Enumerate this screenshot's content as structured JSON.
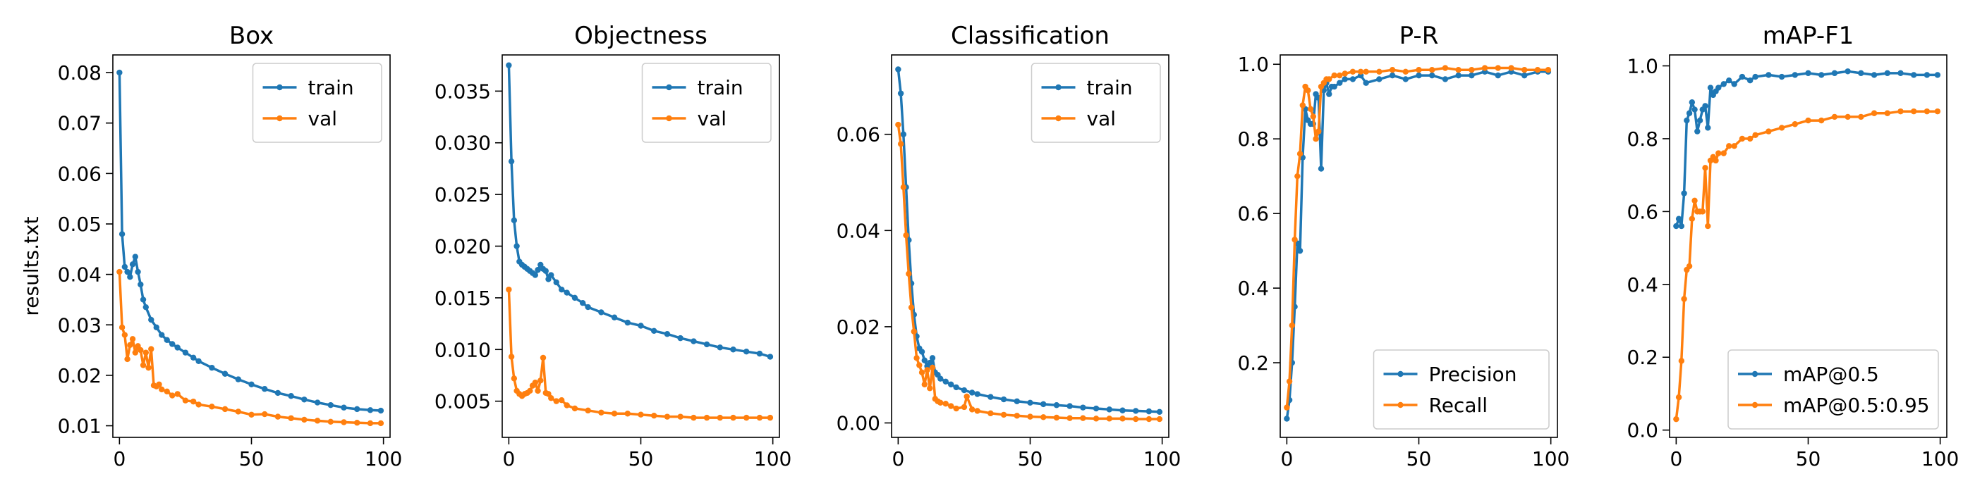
{
  "figure_ylabel": "results.txt",
  "colors": {
    "series1": "#1f77b4",
    "series2": "#ff7f0e"
  },
  "chart_data": [
    {
      "type": "line",
      "title": "Box",
      "xlabel": "",
      "ylabel": "results.txt",
      "xlim": [
        -2.5,
        102.5
      ],
      "ylim": [
        0.0077,
        0.0835
      ],
      "x_ticks": [
        0,
        50,
        100
      ],
      "y_ticks": [
        0.01,
        0.02,
        0.03,
        0.04,
        0.05,
        0.06,
        0.07,
        0.08
      ],
      "y_tick_labels": [
        "0.01",
        "0.02",
        "0.03",
        "0.04",
        "0.05",
        "0.06",
        "0.07",
        "0.08"
      ],
      "legend_loc": "top-right",
      "series": [
        {
          "name": "train",
          "x": [
            0,
            1,
            2,
            3,
            4,
            5,
            6,
            7,
            8,
            9,
            10,
            12,
            14,
            16,
            18,
            20,
            22,
            25,
            28,
            30,
            35,
            40,
            45,
            50,
            55,
            60,
            65,
            70,
            75,
            80,
            85,
            90,
            95,
            99
          ],
          "values": [
            0.08,
            0.048,
            0.0415,
            0.0405,
            0.0395,
            0.042,
            0.0435,
            0.0405,
            0.038,
            0.035,
            0.0335,
            0.031,
            0.0295,
            0.028,
            0.027,
            0.0262,
            0.0255,
            0.0245,
            0.0235,
            0.0228,
            0.0215,
            0.0203,
            0.0192,
            0.0182,
            0.0173,
            0.0165,
            0.0159,
            0.0152,
            0.0146,
            0.0141,
            0.0136,
            0.0133,
            0.0131,
            0.013
          ]
        },
        {
          "name": "val",
          "x": [
            0,
            1,
            2,
            3,
            4,
            5,
            6,
            7,
            8,
            9,
            10,
            11,
            12,
            13,
            14,
            15,
            16,
            18,
            20,
            22,
            25,
            28,
            30,
            35,
            40,
            45,
            50,
            55,
            60,
            65,
            70,
            75,
            80,
            85,
            90,
            95,
            99
          ],
          "values": [
            0.0405,
            0.0295,
            0.028,
            0.0232,
            0.026,
            0.0272,
            0.0245,
            0.0258,
            0.025,
            0.022,
            0.0245,
            0.0215,
            0.0252,
            0.018,
            0.0178,
            0.0182,
            0.0172,
            0.0168,
            0.016,
            0.0163,
            0.015,
            0.0148,
            0.0142,
            0.0138,
            0.0133,
            0.0128,
            0.0122,
            0.0123,
            0.0118,
            0.0115,
            0.0112,
            0.011,
            0.0108,
            0.0107,
            0.0106,
            0.0105,
            0.0105
          ]
        }
      ]
    },
    {
      "type": "line",
      "title": "Objectness",
      "xlabel": "",
      "ylabel": "",
      "xlim": [
        -2.5,
        102.5
      ],
      "ylim": [
        0.0015,
        0.0385
      ],
      "x_ticks": [
        0,
        50,
        100
      ],
      "y_ticks": [
        0.005,
        0.01,
        0.015,
        0.02,
        0.025,
        0.03,
        0.035
      ],
      "y_tick_labels": [
        "0.005",
        "0.010",
        "0.015",
        "0.020",
        "0.025",
        "0.030",
        "0.035"
      ],
      "legend_loc": "top-right",
      "series": [
        {
          "name": "train",
          "x": [
            0,
            1,
            2,
            3,
            4,
            5,
            6,
            7,
            8,
            9,
            10,
            11,
            12,
            13,
            14,
            15,
            16,
            18,
            20,
            22,
            25,
            28,
            30,
            35,
            40,
            45,
            50,
            55,
            60,
            65,
            70,
            75,
            80,
            85,
            90,
            95,
            99
          ],
          "values": [
            0.0375,
            0.0282,
            0.0225,
            0.02,
            0.0185,
            0.0182,
            0.018,
            0.0178,
            0.0176,
            0.0174,
            0.0172,
            0.0177,
            0.0182,
            0.0178,
            0.0176,
            0.0168,
            0.0172,
            0.0165,
            0.0158,
            0.0155,
            0.015,
            0.0145,
            0.0141,
            0.0136,
            0.0131,
            0.0126,
            0.0123,
            0.0118,
            0.0115,
            0.0111,
            0.0108,
            0.0105,
            0.0102,
            0.01,
            0.0098,
            0.0096,
            0.0093
          ]
        },
        {
          "name": "val",
          "x": [
            0,
            1,
            2,
            3,
            4,
            5,
            6,
            7,
            8,
            9,
            10,
            11,
            12,
            13,
            14,
            15,
            16,
            18,
            20,
            22,
            25,
            30,
            35,
            40,
            45,
            50,
            55,
            60,
            65,
            70,
            75,
            80,
            85,
            90,
            95,
            99
          ],
          "values": [
            0.0158,
            0.0093,
            0.0072,
            0.006,
            0.0057,
            0.0055,
            0.0057,
            0.0058,
            0.006,
            0.0065,
            0.0068,
            0.006,
            0.007,
            0.0092,
            0.0058,
            0.0057,
            0.0053,
            0.005,
            0.0051,
            0.0046,
            0.0043,
            0.0041,
            0.0039,
            0.0038,
            0.0038,
            0.0037,
            0.0036,
            0.0035,
            0.0035,
            0.0034,
            0.0034,
            0.0034,
            0.0034,
            0.0034,
            0.0034,
            0.0034
          ]
        }
      ]
    },
    {
      "type": "line",
      "title": "Classification",
      "xlabel": "",
      "ylabel": "",
      "xlim": [
        -2.5,
        102.5
      ],
      "ylim": [
        -0.003,
        0.0765
      ],
      "x_ticks": [
        0,
        50,
        100
      ],
      "y_ticks": [
        0.0,
        0.02,
        0.04,
        0.06
      ],
      "y_tick_labels": [
        "0.00",
        "0.02",
        "0.04",
        "0.06"
      ],
      "legend_loc": "top-right",
      "series": [
        {
          "name": "train",
          "x": [
            0,
            1,
            2,
            3,
            4,
            5,
            6,
            7,
            8,
            9,
            10,
            11,
            12,
            13,
            14,
            15,
            16,
            18,
            20,
            22,
            25,
            28,
            30,
            35,
            40,
            45,
            50,
            55,
            60,
            65,
            70,
            75,
            80,
            85,
            90,
            95,
            99
          ],
          "values": [
            0.0735,
            0.0685,
            0.06,
            0.049,
            0.038,
            0.029,
            0.0225,
            0.018,
            0.0155,
            0.0148,
            0.013,
            0.0118,
            0.0125,
            0.0135,
            0.0105,
            0.01,
            0.0092,
            0.0086,
            0.008,
            0.0074,
            0.0068,
            0.0063,
            0.006,
            0.0054,
            0.0049,
            0.0045,
            0.0042,
            0.0039,
            0.0037,
            0.0035,
            0.0032,
            0.003,
            0.0028,
            0.0026,
            0.0025,
            0.0024,
            0.0023
          ]
        },
        {
          "name": "val",
          "x": [
            0,
            1,
            2,
            3,
            4,
            5,
            6,
            7,
            8,
            9,
            10,
            11,
            12,
            13,
            14,
            15,
            16,
            18,
            20,
            22,
            25,
            26,
            28,
            30,
            35,
            40,
            45,
            50,
            55,
            60,
            65,
            70,
            75,
            80,
            85,
            90,
            95,
            99
          ],
          "values": [
            0.062,
            0.058,
            0.049,
            0.039,
            0.031,
            0.024,
            0.019,
            0.0135,
            0.012,
            0.0105,
            0.008,
            0.011,
            0.0072,
            0.0115,
            0.005,
            0.0045,
            0.0042,
            0.004,
            0.0035,
            0.003,
            0.0033,
            0.0055,
            0.0028,
            0.0025,
            0.002,
            0.0017,
            0.0015,
            0.0013,
            0.0012,
            0.0011,
            0.001,
            0.001,
            0.0009,
            0.0009,
            0.0009,
            0.0008,
            0.0008,
            0.0008
          ]
        }
      ]
    },
    {
      "type": "line",
      "title": "P-R",
      "xlabel": "",
      "ylabel": "",
      "xlim": [
        -2.5,
        102.5
      ],
      "ylim": [
        0.0,
        1.025
      ],
      "x_ticks": [
        0,
        50,
        100
      ],
      "y_ticks": [
        0.2,
        0.4,
        0.6,
        0.8,
        1.0
      ],
      "y_tick_labels": [
        "0.2",
        "0.4",
        "0.6",
        "0.8",
        "1.0"
      ],
      "legend_loc": "bottom-right",
      "series": [
        {
          "name": "Precision",
          "x": [
            0,
            1,
            2,
            3,
            4,
            5,
            6,
            7,
            8,
            9,
            10,
            11,
            12,
            13,
            14,
            15,
            16,
            17,
            18,
            20,
            22,
            25,
            28,
            30,
            35,
            40,
            45,
            50,
            55,
            60,
            65,
            70,
            75,
            80,
            85,
            90,
            95,
            99
          ],
          "values": [
            0.05,
            0.1,
            0.2,
            0.35,
            0.52,
            0.5,
            0.75,
            0.88,
            0.85,
            0.84,
            0.84,
            0.92,
            0.91,
            0.72,
            0.93,
            0.95,
            0.92,
            0.94,
            0.94,
            0.95,
            0.96,
            0.96,
            0.97,
            0.95,
            0.96,
            0.97,
            0.96,
            0.97,
            0.97,
            0.96,
            0.97,
            0.97,
            0.98,
            0.97,
            0.98,
            0.97,
            0.98,
            0.98
          ]
        },
        {
          "name": "Recall",
          "x": [
            0,
            1,
            2,
            3,
            4,
            5,
            6,
            7,
            8,
            9,
            10,
            11,
            12,
            13,
            14,
            15,
            16,
            18,
            20,
            22,
            25,
            28,
            30,
            35,
            40,
            45,
            50,
            55,
            60,
            65,
            70,
            75,
            80,
            85,
            90,
            95,
            99
          ],
          "values": [
            0.08,
            0.15,
            0.3,
            0.53,
            0.7,
            0.76,
            0.89,
            0.94,
            0.93,
            0.88,
            0.86,
            0.8,
            0.82,
            0.94,
            0.95,
            0.96,
            0.96,
            0.97,
            0.97,
            0.975,
            0.98,
            0.98,
            0.98,
            0.98,
            0.985,
            0.98,
            0.985,
            0.985,
            0.99,
            0.985,
            0.985,
            0.99,
            0.99,
            0.99,
            0.985,
            0.985,
            0.985
          ]
        }
      ]
    },
    {
      "type": "line",
      "title": "mAP-F1",
      "xlabel": "",
      "ylabel": "",
      "xlim": [
        -2.5,
        102.5
      ],
      "ylim": [
        -0.02,
        1.03
      ],
      "x_ticks": [
        0,
        50,
        100
      ],
      "y_ticks": [
        0.0,
        0.2,
        0.4,
        0.6,
        0.8,
        1.0
      ],
      "y_tick_labels": [
        "0.0",
        "0.2",
        "0.4",
        "0.6",
        "0.8",
        "1.0"
      ],
      "legend_loc": "bottom-right",
      "series": [
        {
          "name": "mAP@0.5",
          "x": [
            0,
            1,
            2,
            3,
            4,
            5,
            6,
            7,
            8,
            9,
            10,
            11,
            12,
            13,
            14,
            15,
            16,
            18,
            20,
            22,
            25,
            28,
            30,
            35,
            40,
            45,
            50,
            55,
            60,
            65,
            70,
            75,
            80,
            85,
            90,
            95,
            99
          ],
          "values": [
            0.56,
            0.58,
            0.56,
            0.65,
            0.85,
            0.87,
            0.9,
            0.88,
            0.82,
            0.85,
            0.88,
            0.89,
            0.83,
            0.94,
            0.92,
            0.93,
            0.94,
            0.95,
            0.96,
            0.95,
            0.97,
            0.96,
            0.97,
            0.975,
            0.97,
            0.975,
            0.98,
            0.975,
            0.98,
            0.985,
            0.98,
            0.975,
            0.98,
            0.98,
            0.975,
            0.975,
            0.975
          ]
        },
        {
          "name": "mAP@0.5:0.95",
          "x": [
            0,
            1,
            2,
            3,
            4,
            5,
            6,
            7,
            8,
            9,
            10,
            11,
            12,
            13,
            14,
            15,
            16,
            18,
            20,
            22,
            25,
            28,
            30,
            35,
            40,
            45,
            50,
            55,
            60,
            65,
            70,
            75,
            80,
            85,
            90,
            95,
            99
          ],
          "values": [
            0.03,
            0.09,
            0.19,
            0.36,
            0.44,
            0.45,
            0.58,
            0.63,
            0.6,
            0.6,
            0.6,
            0.72,
            0.56,
            0.74,
            0.75,
            0.74,
            0.76,
            0.76,
            0.78,
            0.78,
            0.8,
            0.8,
            0.81,
            0.82,
            0.83,
            0.84,
            0.85,
            0.85,
            0.86,
            0.86,
            0.86,
            0.87,
            0.87,
            0.875,
            0.875,
            0.875,
            0.875
          ]
        }
      ]
    }
  ]
}
